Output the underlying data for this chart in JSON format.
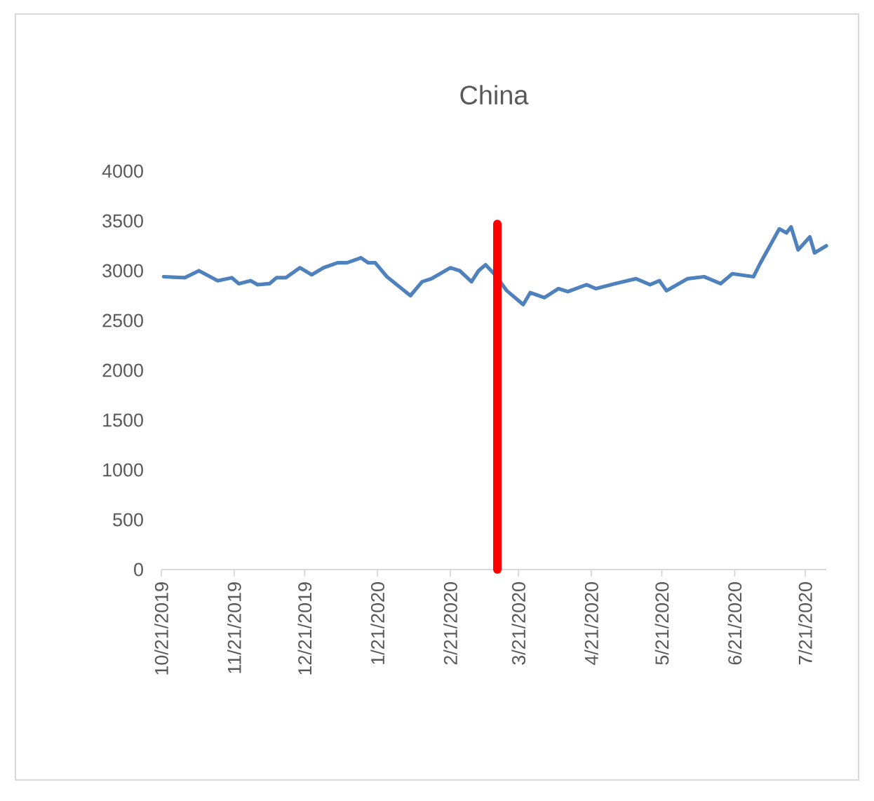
{
  "chart_data": {
    "type": "line",
    "title": "China",
    "xlim": [
      "2019-10-21",
      "2020-07-30"
    ],
    "xticks": [
      {
        "value": "2019-10-21",
        "label": "10/21/2019"
      },
      {
        "value": "2019-11-21",
        "label": "11/21/2019"
      },
      {
        "value": "2019-12-21",
        "label": "12/21/2019"
      },
      {
        "value": "2020-01-21",
        "label": "1/21/2020"
      },
      {
        "value": "2020-02-21",
        "label": "2/21/2020"
      },
      {
        "value": "2020-03-21",
        "label": "3/21/2020"
      },
      {
        "value": "2020-04-21",
        "label": "4/21/2020"
      },
      {
        "value": "2020-05-21",
        "label": "5/21/2020"
      },
      {
        "value": "2020-06-21",
        "label": "6/21/2020"
      },
      {
        "value": "2020-07-21",
        "label": "7/21/2020"
      }
    ],
    "ylim": [
      0,
      4000
    ],
    "yticks": [
      0,
      500,
      1000,
      1500,
      2000,
      2500,
      3000,
      3500,
      4000
    ],
    "series": [
      {
        "color": "#4f81bd",
        "x": [
          "2019-10-22",
          "2019-10-31",
          "2019-11-06",
          "2019-11-14",
          "2019-11-20",
          "2019-11-23",
          "2019-11-28",
          "2019-12-01",
          "2019-12-06",
          "2019-12-09",
          "2019-12-13",
          "2019-12-19",
          "2019-12-24",
          "2019-12-29",
          "2020-01-04",
          "2020-01-08",
          "2020-01-14",
          "2020-01-17",
          "2020-01-20",
          "2020-01-25",
          "2020-02-04",
          "2020-02-09",
          "2020-02-13",
          "2020-02-21",
          "2020-02-25",
          "2020-03-01",
          "2020-03-04",
          "2020-03-07",
          "2020-03-11",
          "2020-03-16",
          "2020-03-20",
          "2020-03-23",
          "2020-03-26",
          "2020-04-01",
          "2020-04-07",
          "2020-04-11",
          "2020-04-19",
          "2020-04-23",
          "2020-05-01",
          "2020-05-10",
          "2020-05-16",
          "2020-05-20",
          "2020-05-23",
          "2020-06-01",
          "2020-06-08",
          "2020-06-15",
          "2020-06-20",
          "2020-06-29",
          "2020-07-02",
          "2020-07-10",
          "2020-07-13",
          "2020-07-15",
          "2020-07-18",
          "2020-07-23",
          "2020-07-25",
          "2020-07-30"
        ],
        "values": [
          2940,
          2930,
          3000,
          2900,
          2930,
          2870,
          2900,
          2860,
          2870,
          2930,
          2930,
          3030,
          2960,
          3030,
          3080,
          3080,
          3130,
          3080,
          3080,
          2940,
          2750,
          2890,
          2920,
          3030,
          3000,
          2890,
          3000,
          3060,
          2960,
          2800,
          2720,
          2660,
          2780,
          2730,
          2820,
          2790,
          2860,
          2820,
          2870,
          2920,
          2860,
          2900,
          2800,
          2920,
          2940,
          2870,
          2970,
          2940,
          3080,
          3420,
          3380,
          3440,
          3210,
          3340,
          3180,
          3250
        ]
      },
      {
        "color": "#ff0000",
        "x": [
          "2020-03-12",
          "2020-03-12"
        ],
        "values": [
          0,
          3470
        ]
      }
    ]
  }
}
